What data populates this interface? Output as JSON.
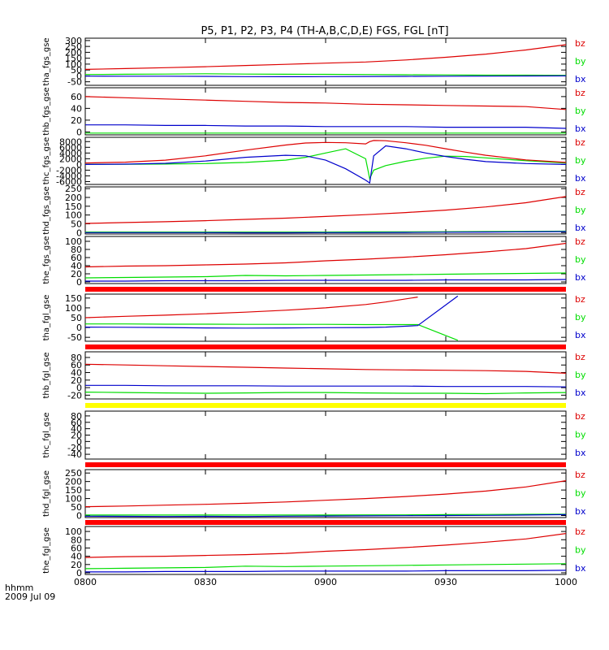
{
  "title": "P5, P1, P2, P3, P4 (TH-A,B,C,D,E) FGS, FGL [nT]",
  "time_axis_label": "hhmm",
  "date_label": "2009 Jul 09",
  "colors": {
    "bz": "#dd0000",
    "by": "#00dd00",
    "bx": "#0000cc",
    "red_bar": "#ff0000",
    "yellow_bar": "#ffff00"
  },
  "chart_data": [
    {
      "type": "line",
      "ylabel": "tha_fgs_gse",
      "ylim": [
        -80,
        320
      ],
      "ticks": [
        {
          "v": 300,
          "t": "300"
        },
        {
          "v": 250,
          "t": "250"
        },
        {
          "v": 200,
          "t": "200"
        },
        {
          "v": 150,
          "t": "150"
        },
        {
          "v": 100,
          "t": "100"
        },
        {
          "v": 50,
          "t": "50"
        },
        {
          "v": 0,
          "t": "0"
        },
        {
          "v": -50,
          "t": "-50"
        }
      ],
      "x": [
        0,
        10,
        20,
        30,
        40,
        50,
        60,
        70,
        80,
        90,
        100,
        110,
        120
      ],
      "series": [
        {
          "name": "bz",
          "values": [
            55,
            62,
            70,
            78,
            88,
            98,
            108,
            118,
            135,
            158,
            185,
            220,
            265
          ]
        },
        {
          "name": "by",
          "values": [
            12,
            14,
            15,
            18,
            15,
            14,
            13,
            12,
            10,
            8,
            6,
            6,
            5
          ]
        },
        {
          "name": "bx",
          "values": [
            -2,
            -3,
            -3,
            -4,
            -6,
            -7,
            -6,
            -5,
            -4,
            -3,
            -2,
            -1,
            0
          ]
        }
      ]
    },
    {
      "type": "line",
      "ylabel": "thb_fgs_gse",
      "ylim": [
        -5,
        75
      ],
      "ticks": [
        {
          "v": 60,
          "t": "60"
        },
        {
          "v": 40,
          "t": "40"
        },
        {
          "v": 20,
          "t": "20"
        },
        {
          "v": 0,
          "t": "0"
        }
      ],
      "x": [
        0,
        10,
        20,
        30,
        40,
        50,
        60,
        70,
        80,
        90,
        100,
        110,
        120
      ],
      "series": [
        {
          "name": "bz",
          "values": [
            60,
            58,
            56,
            54,
            52,
            50,
            49,
            47,
            46,
            45,
            44,
            43,
            38
          ]
        },
        {
          "name": "by",
          "values": [
            -2,
            -2,
            -2,
            -2,
            -2,
            -2,
            -2,
            -2,
            -2,
            -2,
            -2,
            -2,
            -2
          ]
        },
        {
          "name": "bx",
          "values": [
            12,
            12,
            11,
            11,
            10,
            10,
            9,
            9,
            9,
            8,
            8,
            8,
            6
          ]
        }
      ]
    },
    {
      "type": "line",
      "ylabel": "thc_fgs_gse",
      "ylim": [
        -7000,
        9500
      ],
      "ticks": [
        {
          "v": 8000,
          "t": "8000"
        },
        {
          "v": 6000,
          "t": "6000"
        },
        {
          "v": 4000,
          "t": "4000"
        },
        {
          "v": 2000,
          "t": "2000"
        },
        {
          "v": 0,
          "t": "0"
        },
        {
          "v": -2000,
          "t": "-2000"
        },
        {
          "v": -4000,
          "t": "-4000"
        },
        {
          "v": -6000,
          "t": "-6000"
        }
      ],
      "x": [
        0,
        10,
        20,
        30,
        40,
        50,
        55,
        60,
        65,
        70,
        71,
        72,
        75,
        80,
        85,
        90,
        95,
        100,
        110,
        120
      ],
      "series": [
        {
          "name": "bz",
          "values": [
            500,
            800,
            1500,
            3000,
            5000,
            6800,
            7500,
            7700,
            7600,
            7200,
            8000,
            8400,
            8300,
            7600,
            6700,
            5500,
            4300,
            3200,
            1600,
            700
          ]
        },
        {
          "name": "by",
          "values": [
            50,
            80,
            150,
            300,
            700,
            1500,
            2500,
            4000,
            5500,
            2000,
            -5000,
            -2000,
            -400,
            1100,
            2200,
            2900,
            2800,
            2300,
            1300,
            500
          ]
        },
        {
          "name": "bx",
          "values": [
            0,
            100,
            400,
            1200,
            2500,
            3200,
            3000,
            1500,
            -1500,
            -5500,
            -6500,
            3000,
            6500,
            5500,
            4000,
            2800,
            1800,
            1000,
            300,
            0
          ]
        }
      ]
    },
    {
      "type": "line",
      "ylabel": "thd_fgs_gse",
      "ylim": [
        -8,
        260
      ],
      "ticks": [
        {
          "v": 250,
          "t": "250"
        },
        {
          "v": 200,
          "t": "200"
        },
        {
          "v": 150,
          "t": "150"
        },
        {
          "v": 100,
          "t": "100"
        },
        {
          "v": 50,
          "t": "50"
        },
        {
          "v": 0,
          "t": "0"
        }
      ],
      "x": [
        0,
        10,
        20,
        30,
        40,
        50,
        60,
        70,
        80,
        90,
        100,
        110,
        120
      ],
      "series": [
        {
          "name": "bz",
          "values": [
            52,
            57,
            62,
            68,
            75,
            82,
            92,
            102,
            114,
            128,
            146,
            170,
            205
          ]
        },
        {
          "name": "by",
          "values": [
            3,
            3,
            3,
            3,
            3,
            3,
            3,
            4,
            4,
            5,
            6,
            7,
            8
          ]
        },
        {
          "name": "bx",
          "values": [
            0,
            0,
            0,
            0,
            -1,
            -1,
            0,
            0,
            1,
            2,
            3,
            4,
            6
          ]
        }
      ]
    },
    {
      "type": "line",
      "ylabel": "the_fgs_gse",
      "ylim": [
        -4,
        112
      ],
      "ticks": [
        {
          "v": 100,
          "t": "100"
        },
        {
          "v": 80,
          "t": "80"
        },
        {
          "v": 60,
          "t": "60"
        },
        {
          "v": 40,
          "t": "40"
        },
        {
          "v": 20,
          "t": "20"
        },
        {
          "v": 0,
          "t": "0"
        }
      ],
      "x": [
        0,
        10,
        20,
        30,
        40,
        50,
        60,
        70,
        80,
        90,
        100,
        110,
        120
      ],
      "series": [
        {
          "name": "bz",
          "values": [
            37,
            39,
            40,
            42,
            44,
            47,
            52,
            56,
            61,
            67,
            74,
            82,
            95
          ]
        },
        {
          "name": "by",
          "values": [
            10,
            11,
            12,
            13,
            16,
            15,
            16,
            17,
            18,
            19,
            20,
            21,
            22
          ]
        },
        {
          "name": "bx",
          "values": [
            2,
            2,
            3,
            3,
            3,
            4,
            4,
            4,
            4,
            5,
            5,
            5,
            6
          ]
        }
      ]
    },
    {
      "type": "line",
      "ylabel": "tha_fgl_gse",
      "ylim": [
        -70,
        170
      ],
      "ticks": [
        {
          "v": 150,
          "t": "150"
        },
        {
          "v": 100,
          "t": "100"
        },
        {
          "v": 50,
          "t": "50"
        },
        {
          "v": 0,
          "t": "0"
        },
        {
          "v": -50,
          "t": "-50"
        }
      ],
      "x": [
        0,
        10,
        20,
        30,
        40,
        50,
        60,
        70,
        75,
        83,
        93
      ],
      "series": [
        {
          "name": "bz",
          "values": [
            50,
            57,
            63,
            70,
            78,
            88,
            100,
            117,
            130,
            155,
            null
          ]
        },
        {
          "name": "by",
          "values": [
            18,
            18,
            17,
            17,
            16,
            16,
            16,
            15,
            15,
            15,
            -65
          ]
        },
        {
          "name": "bx",
          "values": [
            2,
            1,
            0,
            -2,
            -3,
            -2,
            -1,
            0,
            2,
            10,
            160
          ]
        }
      ],
      "series_breaks": "bz ends near 0924; by and bx diverge after 0924"
    },
    {
      "type": "line",
      "ylabel": "thb_fgl_gse",
      "ylim": [
        -30,
        95
      ],
      "ticks": [
        {
          "v": 80,
          "t": "80"
        },
        {
          "v": 60,
          "t": "60"
        },
        {
          "v": 40,
          "t": "40"
        },
        {
          "v": 20,
          "t": "20"
        },
        {
          "v": 0,
          "t": "0"
        },
        {
          "v": -20,
          "t": "-20"
        }
      ],
      "x": [
        0,
        10,
        20,
        30,
        40,
        50,
        60,
        70,
        80,
        90,
        100,
        110,
        120
      ],
      "series": [
        {
          "name": "bz",
          "values": [
            62,
            60,
            58,
            56,
            54,
            52,
            50,
            48,
            47,
            46,
            45,
            43,
            38
          ]
        },
        {
          "name": "by",
          "values": [
            -12,
            -13,
            -14,
            -15,
            -14,
            -13,
            -13,
            -14,
            -15,
            -15,
            -16,
            -14,
            -13
          ]
        },
        {
          "name": "bx",
          "values": [
            6,
            6,
            5,
            5,
            5,
            4,
            4,
            4,
            4,
            3,
            3,
            3,
            2
          ]
        }
      ]
    },
    {
      "type": "line",
      "ylabel": "thc_fgl_gse",
      "ylim": [
        -55,
        95
      ],
      "ticks": [
        {
          "v": 80,
          "t": "80"
        },
        {
          "v": 60,
          "t": "60"
        },
        {
          "v": 40,
          "t": "40"
        },
        {
          "v": 20,
          "t": "20"
        },
        {
          "v": 0,
          "t": "0"
        },
        {
          "v": -20,
          "t": "-20"
        },
        {
          "v": -40,
          "t": "-40"
        }
      ],
      "x": [],
      "series": []
    },
    {
      "type": "line",
      "ylabel": "thd_fgl_gse",
      "ylim": [
        -12,
        270
      ],
      "ticks": [
        {
          "v": 250,
          "t": "250"
        },
        {
          "v": 200,
          "t": "200"
        },
        {
          "v": 150,
          "t": "150"
        },
        {
          "v": 100,
          "t": "100"
        },
        {
          "v": 50,
          "t": "50"
        },
        {
          "v": 0,
          "t": "0"
        }
      ],
      "x": [
        0,
        10,
        20,
        30,
        40,
        50,
        60,
        70,
        80,
        90,
        100,
        110,
        120
      ],
      "series": [
        {
          "name": "bz",
          "values": [
            52,
            56,
            61,
            66,
            72,
            80,
            90,
            100,
            112,
            126,
            144,
            168,
            205
          ]
        },
        {
          "name": "by",
          "values": [
            3,
            3,
            3,
            3,
            3,
            3,
            3,
            4,
            4,
            5,
            6,
            7,
            8
          ]
        },
        {
          "name": "bx",
          "values": [
            -4,
            -5,
            -6,
            -5,
            -6,
            -4,
            -3,
            -2,
            -1,
            0,
            1,
            3,
            5
          ]
        }
      ]
    },
    {
      "type": "line",
      "ylabel": "the_fgl_gse",
      "ylim": [
        -4,
        112
      ],
      "ticks": [
        {
          "v": 100,
          "t": "100"
        },
        {
          "v": 80,
          "t": "80"
        },
        {
          "v": 60,
          "t": "60"
        },
        {
          "v": 40,
          "t": "40"
        },
        {
          "v": 20,
          "t": "20"
        },
        {
          "v": 0,
          "t": "0"
        }
      ],
      "x": [
        0,
        10,
        20,
        30,
        40,
        50,
        60,
        70,
        80,
        90,
        100,
        110,
        120
      ],
      "series": [
        {
          "name": "bz",
          "values": [
            37,
            39,
            40,
            42,
            44,
            47,
            52,
            56,
            61,
            67,
            74,
            82,
            95
          ]
        },
        {
          "name": "by",
          "values": [
            10,
            11,
            12,
            13,
            16,
            15,
            16,
            17,
            18,
            19,
            20,
            21,
            22
          ]
        },
        {
          "name": "bx",
          "values": [
            2,
            2,
            3,
            3,
            3,
            4,
            4,
            4,
            4,
            5,
            5,
            5,
            6
          ]
        }
      ]
    }
  ],
  "status_bars": [
    {
      "after_panel": 4,
      "color": "red"
    },
    {
      "after_panel": 5,
      "color": "red"
    },
    {
      "after_panel": 6,
      "color": "yellow"
    },
    {
      "after_panel": 7,
      "color": "red"
    },
    {
      "after_panel": 8,
      "color": "red"
    }
  ],
  "x_axis": {
    "xlim": [
      0,
      120
    ],
    "ticks": [
      {
        "v": 0,
        "t": "0800"
      },
      {
        "v": 30,
        "t": "0830"
      },
      {
        "v": 60,
        "t": "0900"
      },
      {
        "v": 90,
        "t": "0930"
      },
      {
        "v": 120,
        "t": "1000"
      }
    ]
  },
  "legend_labels": [
    "bz",
    "by",
    "bx"
  ]
}
